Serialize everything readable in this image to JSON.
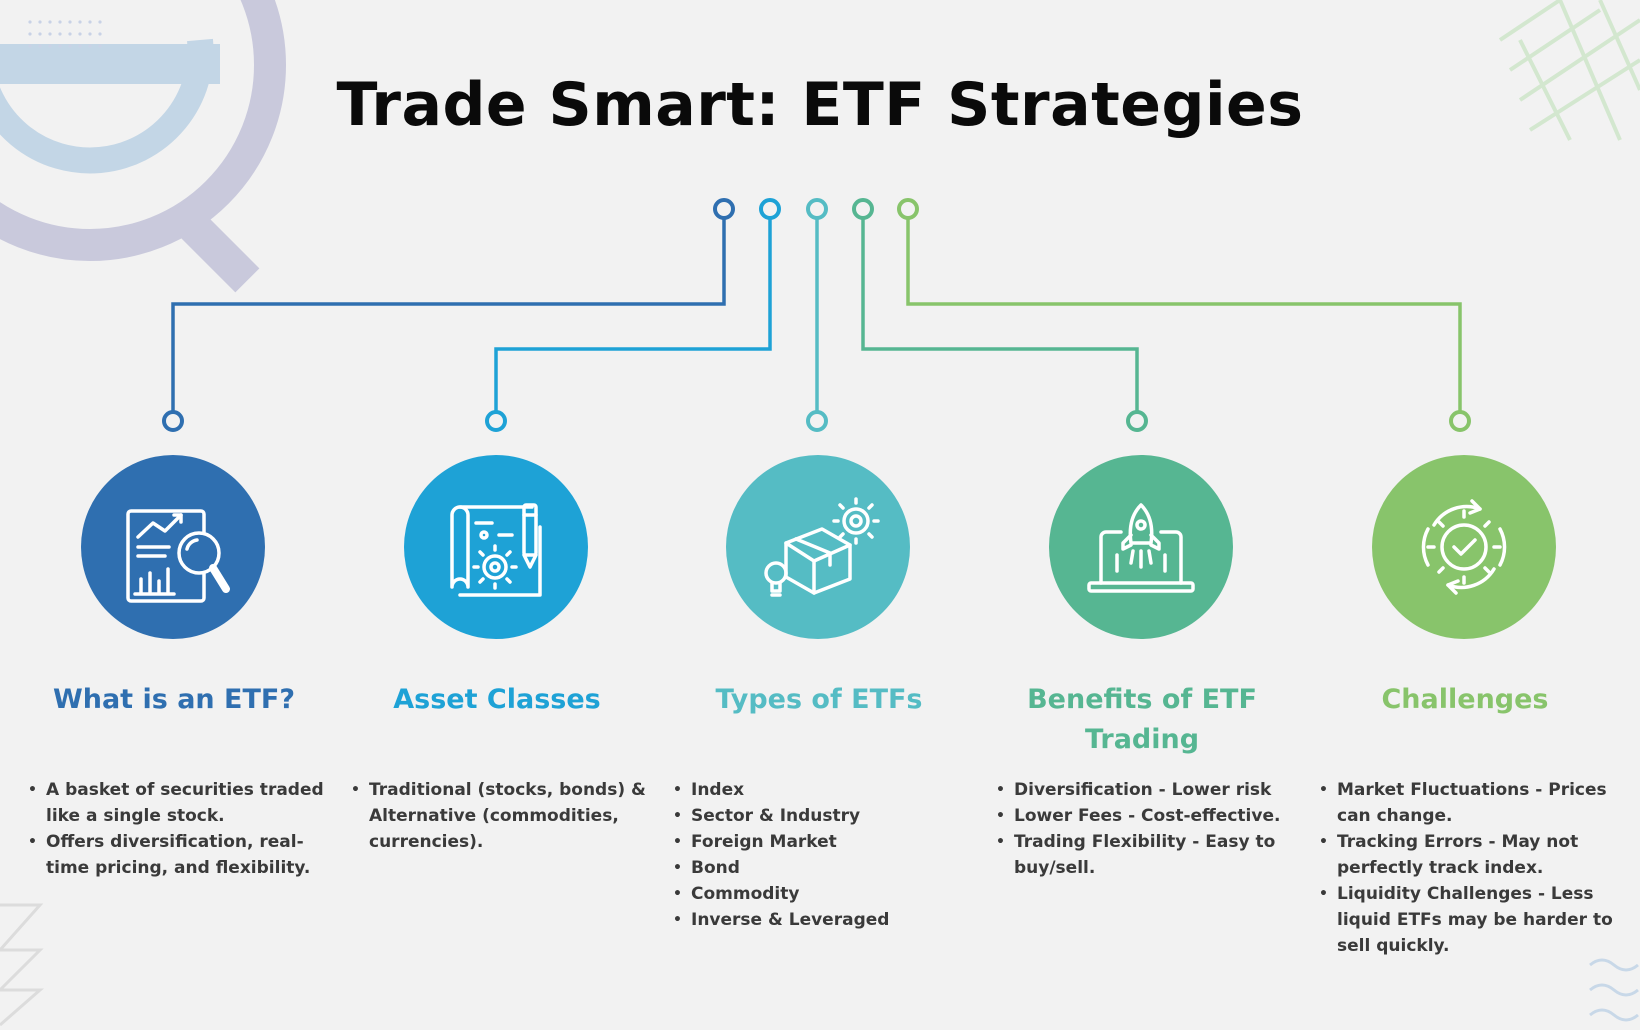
{
  "title": "Trade Smart: ETF Strategies",
  "colors": {
    "background": "#f2f2f2",
    "section_1": "#2f6fb0",
    "section_2": "#1ea2d6",
    "section_3": "#55bcc4",
    "section_4": "#56b692",
    "section_5": "#88c46b"
  },
  "sections": [
    {
      "heading": "What is an ETF?",
      "icon": "report-magnifier-icon",
      "color": "#2f6fb0",
      "bullets": [
        "A basket of securities traded like a single stock.",
        "Offers diversification, real-time pricing, and flexibility."
      ]
    },
    {
      "heading": "Asset Classes",
      "icon": "blueprint-gear-icon",
      "color": "#1ea2d6",
      "bullets": [
        "Traditional (stocks, bonds) & Alternative (commodities, currencies)."
      ]
    },
    {
      "heading": "Types of ETFs",
      "icon": "box-gear-bulb-icon",
      "color": "#55bcc4",
      "bullets": [
        "Index",
        "Sector & Industry",
        "Foreign Market",
        "Bond",
        "Commodity",
        "Inverse & Leveraged"
      ]
    },
    {
      "heading": "Benefits of ETF Trading",
      "icon": "laptop-rocket-icon",
      "color": "#56b692",
      "bullets": [
        "Diversification - Lower risk",
        "Lower Fees - Cost-effective.",
        "Trading Flexibility - Easy to buy/sell."
      ]
    },
    {
      "heading": "Challenges",
      "icon": "gear-check-cycle-icon",
      "color": "#88c46b",
      "bullets": [
        "Market Fluctuations - Prices can change.",
        "Tracking Errors - May not perfectly track index.",
        "Liquidity Challenges - Less liquid ETFs may be harder to sell quickly."
      ]
    }
  ]
}
